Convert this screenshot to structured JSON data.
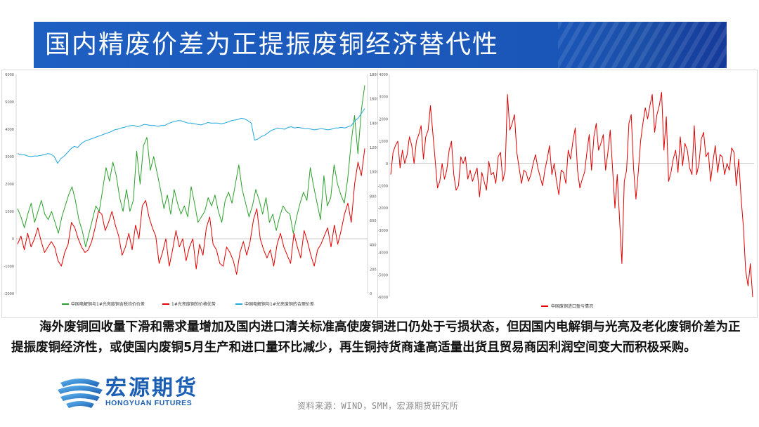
{
  "title": "国内精废价差为正提振废铜经济替代性",
  "body_text": "海外废铜回收量下滑和需求量增加及国内进口清关标准高使废铜进口仍处于亏损状态，但因国内电解铜与光亮及老化废铜价差为正提振废铜经济性，或使国内废铜5月生产和进口量环比减少，再生铜持货商逢高适量出货且贸易商因利润空间变大而积极采购。",
  "logo": {
    "cn": "宏源期货",
    "en": "HONGYUAN FUTURES"
  },
  "source": "资料来源：WIND，SMM，宏源期货研究所",
  "colors": {
    "green": "#2ca02c",
    "red": "#e00000",
    "blue": "#22a7e0",
    "title_bg": "#1e5fc2",
    "logo_blue": "#1a5fb4"
  },
  "chart_data": [
    {
      "type": "line",
      "y_left": {
        "ticks": [
          "6000",
          "5000",
          "4000",
          "3000",
          "2000",
          "1000",
          "0",
          "-1000",
          "-2000"
        ],
        "ylim": [
          -2000,
          6000
        ]
      },
      "y_right": {
        "ticks": [
          "1800",
          "1600",
          "1400",
          "1200",
          "1000",
          "800",
          "600",
          "400",
          "200",
          "0"
        ],
        "ylim": [
          0,
          1800
        ]
      },
      "series": [
        {
          "name": "中国电解铜与1#光亮废铜含税均价价差",
          "axis": "left",
          "color": "#2ca02c",
          "values": [
            1100,
            800,
            400,
            900,
            1300,
            600,
            1000,
            1400,
            900,
            700,
            1000,
            600,
            200,
            800,
            1200,
            1600,
            1900,
            1400,
            700,
            300,
            -300,
            200,
            700,
            1200,
            1000,
            1800,
            2600,
            2100,
            2800,
            2300,
            1500,
            1000,
            1800,
            1000,
            1400,
            3200,
            2000,
            3400,
            3700,
            2500,
            3000,
            2400,
            1800,
            1100,
            1600,
            900,
            1800,
            1300,
            900,
            1200,
            800,
            1900,
            1300,
            600,
            800,
            1000,
            1500,
            1200,
            1600,
            1000,
            600,
            1400,
            1700,
            1300,
            2000,
            2700,
            1800,
            1300,
            800,
            1200,
            1800,
            1400,
            900,
            1500,
            600,
            900,
            300,
            800,
            1200,
            1000,
            900,
            200,
            800,
            1300,
            1700,
            1400,
            2600,
            1900,
            1300,
            700,
            2300,
            1200,
            1500,
            2700,
            2000,
            1600,
            1300,
            2200,
            3500,
            4500,
            3100,
            4700,
            5600
          ]
        },
        {
          "name": "1#光亮废铜的价格优势",
          "axis": "left",
          "color": "#e00000",
          "values": [
            -200,
            100,
            -400,
            200,
            -300,
            0,
            400,
            -100,
            -500,
            -300,
            -100,
            -300,
            -800,
            -1000,
            -500,
            -200,
            600,
            400,
            0,
            -300,
            -500,
            -400,
            -100,
            400,
            1000,
            900,
            300,
            600,
            1000,
            500,
            100,
            -600,
            -300,
            200,
            -400,
            500,
            0,
            1200,
            1400,
            800,
            400,
            100,
            -900,
            -500,
            0,
            -1000,
            -400,
            300,
            -300,
            0,
            -800,
            -300,
            0,
            -1100,
            -200,
            -600,
            400,
            800,
            -200,
            -400,
            -900,
            -1000,
            -300,
            -500,
            -800,
            -1300,
            -500,
            -100,
            -600,
            -100,
            700,
            1100,
            0,
            -400,
            -700,
            -400,
            -1000,
            -200,
            200,
            -300,
            -600,
            -900,
            200,
            -300,
            -700,
            300,
            -100,
            -600,
            -1000,
            -400,
            -200,
            100,
            400,
            -300,
            500,
            -200,
            300,
            900,
            1300,
            600,
            2000,
            2800,
            2300,
            3300
          ]
        },
        {
          "name": "中国电解铜与1#光亮废铜的合理价差",
          "axis": "right",
          "color": "#22a7e0",
          "values": [
            1150,
            1140,
            1140,
            1130,
            1125,
            1130,
            1130,
            1135,
            1140,
            1150,
            1145,
            1125,
            1070,
            1110,
            1130,
            1160,
            1190,
            1210,
            1200,
            1230,
            1250,
            1260,
            1270,
            1280,
            1290,
            1300,
            1310,
            1320,
            1330,
            1345,
            1350,
            1360,
            1365,
            1375,
            1380,
            1380,
            1370,
            1380,
            1390,
            1385,
            1380,
            1380,
            1375,
            1380,
            1380,
            1395,
            1405,
            1415,
            1420,
            1420,
            1410,
            1400,
            1400,
            1395,
            1390,
            1385,
            1395,
            1405,
            1400,
            1400,
            1400,
            1395,
            1400,
            1410,
            1420,
            1425,
            1430,
            1440,
            1435,
            1420,
            1400,
            1260,
            1270,
            1290,
            1300,
            1320,
            1340,
            1350,
            1360,
            1355,
            1350,
            1365,
            1370,
            1360,
            1365,
            1360,
            1355,
            1355,
            1350,
            1345,
            1350,
            1355,
            1350,
            1345,
            1350,
            1360,
            1360,
            1365,
            1360,
            1370,
            1380,
            1420,
            1440,
            1480,
            1520
          ]
        }
      ]
    },
    {
      "type": "line",
      "y": {
        "ticks": [
          "4000",
          "3000",
          "2000",
          "1000",
          "0",
          "-1000",
          "-2000",
          "-3000",
          "-4000",
          "-5000",
          "-6000"
        ],
        "ylim": [
          -6000,
          4000
        ]
      },
      "series": [
        {
          "name": "中国废铜进口盈亏情况",
          "color": "#e00000",
          "values": [
            -500,
            500,
            800,
            1000,
            -200,
            600,
            0,
            400,
            1200,
            800,
            0,
            1000,
            1300,
            1700,
            200,
            1200,
            1500,
            2600,
            1400,
            200,
            -1100,
            -800,
            0,
            -700,
            -300,
            600,
            1000,
            -500,
            -1200,
            -1000,
            300,
            0,
            300,
            -700,
            -300,
            -800,
            -500,
            -200,
            -1500,
            -400,
            -800,
            -1200,
            100,
            -500,
            -400,
            -900,
            300,
            500,
            -800,
            -300,
            3100,
            1500,
            1800,
            2200,
            500,
            -200,
            -900,
            -300,
            -400,
            -800,
            -500,
            0,
            400,
            -200,
            -600,
            -1000,
            -300,
            200,
            800,
            -500,
            0,
            -800,
            -1400,
            -300,
            -400,
            -900,
            600,
            200,
            1000,
            1600,
            -300,
            -1100,
            -700,
            -400,
            500,
            1300,
            -300,
            1200,
            1800,
            600,
            900,
            1300,
            -300,
            500,
            1500,
            -200,
            -2000,
            -500,
            -2500,
            -4500,
            -800,
            -300,
            1800,
            2200,
            -200,
            -1600,
            -400,
            1000,
            1800,
            2500,
            2000,
            2600,
            3100,
            1400,
            2200,
            2600,
            3200,
            600,
            2100,
            -800,
            -400,
            200,
            600,
            -400,
            1200,
            -100,
            900,
            600,
            -200,
            -500,
            1700,
            -500,
            0,
            1100,
            1400,
            300,
            500,
            -800,
            100,
            800,
            -400,
            400,
            300,
            -500,
            0,
            -300,
            700,
            500,
            -1000,
            200,
            -1500,
            -2800,
            -4800,
            -5500,
            -4500,
            -6000
          ]
        }
      ]
    }
  ]
}
